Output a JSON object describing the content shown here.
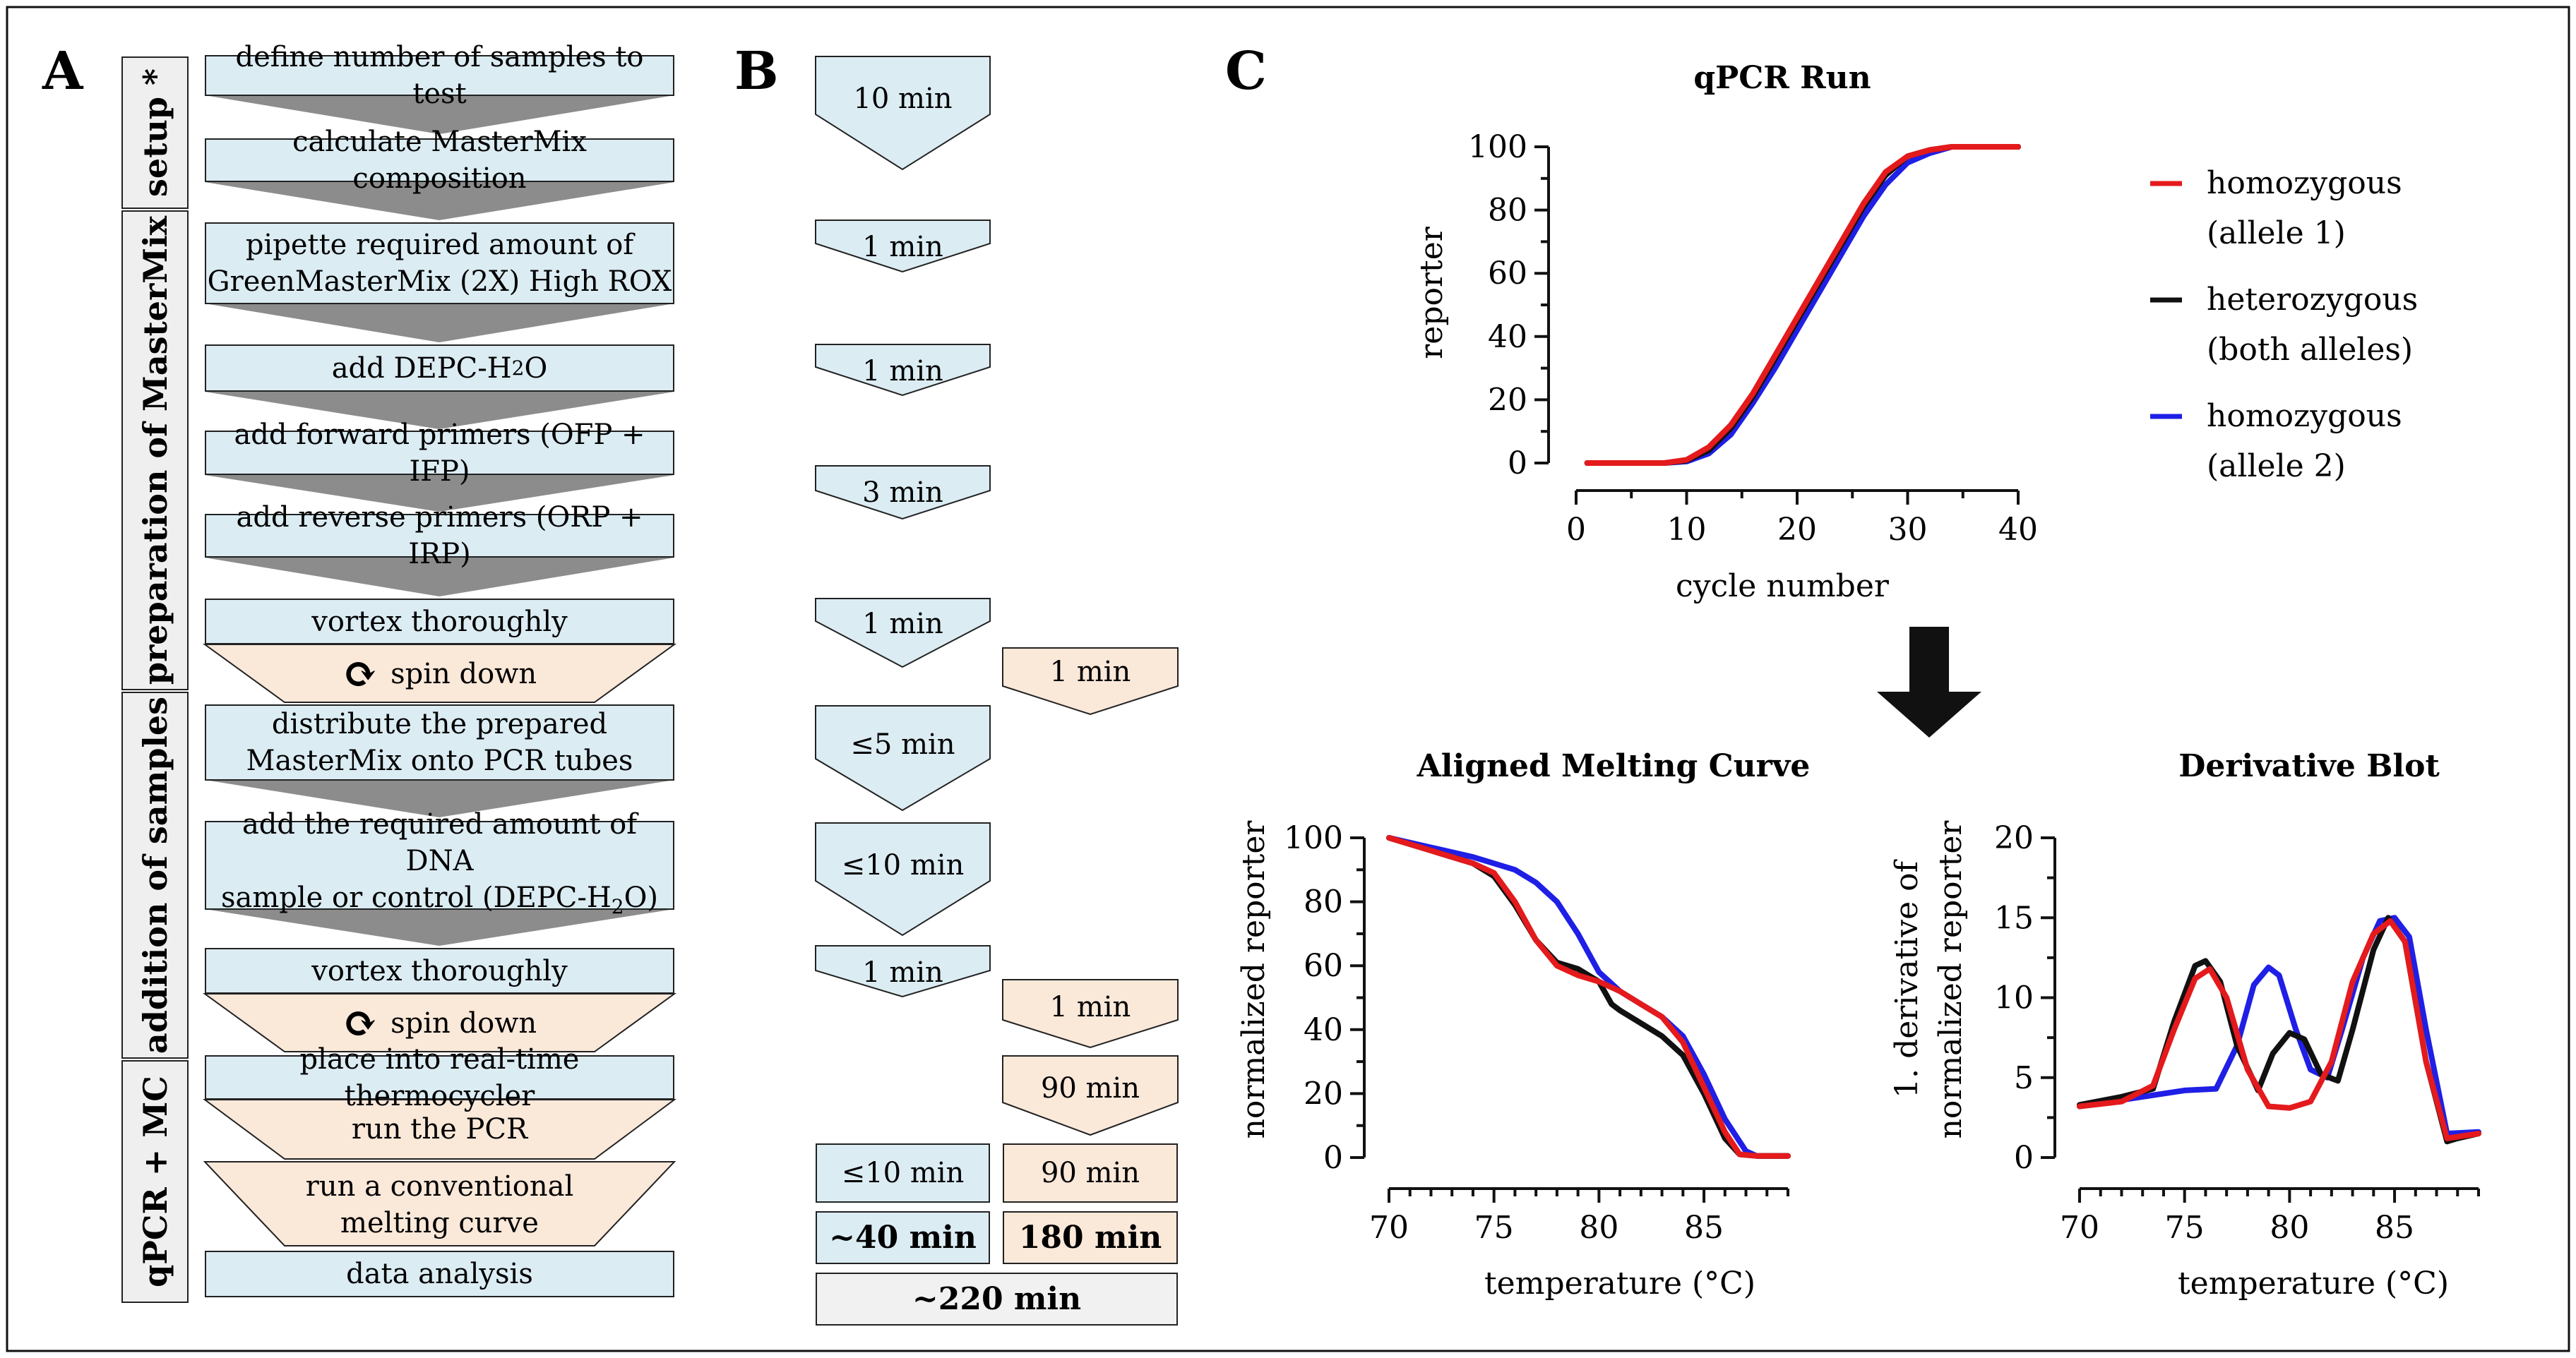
{
  "panel_labels": {
    "a": "A",
    "b": "B",
    "c": "C"
  },
  "panel_a": {
    "sections": [
      "setup *",
      "preparation of MasterMix",
      "addition of samples",
      "qPCR + MC"
    ],
    "steps": {
      "define_samples": "define number of samples to test",
      "calc_mastermix": "calculate MasterMix composition",
      "pipette_1": "pipette required amount of",
      "pipette_2": "GreenMasterMix (2X) High ROX",
      "add_water_prefix": "add DEPC-H",
      "add_water_sub": "2",
      "add_water_suffix": "O",
      "add_forward": "add forward primers (OFP + IFP)",
      "add_reverse": "add reverse primers (ORP + IRP)",
      "vortex_1": "vortex thoroughly",
      "spin_1": "spin down",
      "distribute_1": "distribute the prepared",
      "distribute_2": "MasterMix onto PCR tubes",
      "add_dna_1": "add the required amount of DNA",
      "add_dna_2": "sample or control (DEPC-H",
      "add_dna_sub": "2",
      "add_dna_3": "O)",
      "vortex_2": "vortex thoroughly",
      "spin_2": "spin down",
      "place": "place into real-time thermocycler",
      "run_pcr": "run the PCR",
      "melting_1": "run a  conventional",
      "melting_2": "melting curve",
      "analysis": "data analysis"
    }
  },
  "panel_b": {
    "times_left": [
      "10 min",
      "1 min",
      "1 min",
      "3 min",
      "1 min",
      "≤5 min",
      "≤10 min",
      "1 min"
    ],
    "times_right": [
      "1 min",
      "1 min",
      "90 min"
    ],
    "box_left_total": "≤10 min",
    "box_right_total": "90 min",
    "sum_left": "~40 min",
    "sum_right": "180 min",
    "grand_total": "~220 min"
  },
  "colors": {
    "blue_box": "#dbecf3",
    "peach_box": "#fae8d9",
    "grey_arrow": "#8c8c8c",
    "red": "#e41a1c",
    "black": "#111111",
    "blue": "#1f1fe6"
  },
  "legend": {
    "red_1": "homozygous",
    "red_2": "(allele 1)",
    "black_1": "heterozygous",
    "black_2": "(both alleles)",
    "blue_1": "homozygous",
    "blue_2": "(allele 2)"
  },
  "chart_data": [
    {
      "type": "line",
      "title": "qPCR Run",
      "xlabel": "cycle number",
      "ylabel": "reporter",
      "xlim": [
        0,
        40
      ],
      "ylim": [
        0,
        100
      ],
      "xticks": [
        0,
        10,
        20,
        30,
        40
      ],
      "yticks": [
        0,
        20,
        40,
        60,
        80,
        100
      ],
      "series": [
        {
          "name": "homozygous (allele 1)",
          "color": "#e41a1c",
          "x": [
            1,
            8,
            10,
            12,
            14,
            16,
            18,
            20,
            22,
            24,
            26,
            28,
            30,
            32,
            34,
            36,
            40
          ],
          "y": [
            0,
            0,
            1,
            5,
            12,
            22,
            34,
            46,
            58,
            70,
            82,
            92,
            97,
            99,
            100,
            100,
            100
          ]
        },
        {
          "name": "heterozygous (both alleles)",
          "color": "#111111",
          "x": [
            1,
            8,
            10,
            12,
            14,
            16,
            18,
            20,
            22,
            24,
            26,
            28,
            30,
            32,
            34,
            36,
            40
          ],
          "y": [
            0,
            0,
            0.8,
            4,
            11,
            21,
            33,
            45,
            57,
            69,
            81,
            91,
            97,
            99,
            100,
            100,
            100
          ]
        },
        {
          "name": "homozygous (allele 2)",
          "color": "#1f1fe6",
          "x": [
            1,
            8,
            10,
            12,
            14,
            16,
            18,
            20,
            22,
            24,
            26,
            28,
            30,
            32,
            34,
            36,
            40
          ],
          "y": [
            0,
            0,
            0.5,
            3,
            9,
            19,
            30,
            42,
            54,
            66,
            78,
            88,
            95,
            98,
            100,
            100,
            100
          ]
        }
      ]
    },
    {
      "type": "line",
      "title": "Aligned Melting Curve",
      "xlabel": "temperature (°C)",
      "ylabel": "normalized reporter",
      "xlim": [
        70,
        89
      ],
      "ylim": [
        0,
        100
      ],
      "xticks": [
        70,
        75,
        80,
        85
      ],
      "yticks": [
        0,
        20,
        40,
        60,
        80,
        100
      ],
      "series": [
        {
          "name": "homozygous (allele 1)",
          "color": "#e41a1c",
          "x": [
            70,
            72,
            74,
            75,
            76,
            77,
            78,
            79,
            80,
            81,
            82,
            83,
            84,
            85,
            86,
            86.7,
            87.5,
            89
          ],
          "y": [
            100,
            96,
            92,
            89,
            80,
            68,
            60,
            57,
            55,
            52,
            48,
            44,
            36,
            22,
            8,
            1,
            0.5,
            0.5
          ]
        },
        {
          "name": "heterozygous (both alleles)",
          "color": "#111111",
          "x": [
            70,
            72,
            74,
            75,
            76,
            77,
            78,
            79,
            80,
            80.6,
            81,
            82,
            83,
            84,
            85,
            86,
            86.7,
            87.5,
            89
          ],
          "y": [
            100,
            96,
            92,
            88,
            79,
            68,
            61,
            59,
            55,
            48,
            46,
            42,
            38,
            32,
            20,
            6,
            1,
            0.5,
            0.5
          ]
        },
        {
          "name": "homozygous (allele 2)",
          "color": "#1f1fe6",
          "x": [
            70,
            72,
            74,
            76,
            77,
            77.5,
            78,
            79,
            80,
            81,
            82,
            83,
            84,
            85,
            86,
            87,
            87.5,
            89
          ],
          "y": [
            100,
            97,
            94,
            90,
            86,
            83,
            80,
            70,
            58,
            52,
            48,
            44,
            38,
            26,
            12,
            2,
            0.5,
            0.5
          ]
        }
      ]
    },
    {
      "type": "line",
      "title": "Derivative Blot",
      "xlabel": "temperature (°C)",
      "ylabel": "1. derivative of normalized reporter",
      "xlim": [
        70,
        89
      ],
      "ylim": [
        0,
        20
      ],
      "xticks": [
        70,
        75,
        80,
        85
      ],
      "yticks": [
        0,
        5,
        10,
        15,
        20
      ],
      "series": [
        {
          "name": "homozygous (allele 1)",
          "color": "#e41a1c",
          "x": [
            70,
            72,
            73.5,
            74.5,
            75.5,
            76.2,
            77,
            78,
            79,
            80,
            81,
            82,
            83,
            84,
            84.8,
            85.5,
            86.5,
            87.5,
            89
          ],
          "y": [
            3.2,
            3.5,
            4.5,
            8,
            11.2,
            11.8,
            10,
            5.5,
            3.2,
            3.1,
            3.5,
            6,
            11,
            14,
            14.8,
            13.5,
            6,
            1.2,
            1.5
          ]
        },
        {
          "name": "heterozygous (both alleles)",
          "color": "#111111",
          "x": [
            70,
            72,
            73.5,
            74.5,
            75.5,
            76,
            76.7,
            77.5,
            78.5,
            79.2,
            80,
            80.7,
            81.5,
            82.3,
            83,
            84,
            84.7,
            85.5,
            86.5,
            87.5,
            88,
            89
          ],
          "y": [
            3.3,
            3.8,
            4.3,
            8.5,
            12,
            12.3,
            11,
            7,
            4.2,
            6.5,
            7.8,
            7.4,
            5.2,
            4.8,
            8,
            13,
            15,
            13.5,
            6,
            1,
            1.2,
            1.5
          ]
        },
        {
          "name": "homozygous (allele 2)",
          "color": "#1f1fe6",
          "x": [
            70,
            73,
            75,
            76.5,
            77.5,
            78.3,
            79,
            79.5,
            80.3,
            81,
            81.8,
            82.5,
            83.5,
            84.3,
            85,
            85.7,
            86.5,
            87.5,
            89
          ],
          "y": [
            3.2,
            3.8,
            4.2,
            4.3,
            7,
            10.8,
            11.9,
            11.4,
            8,
            5.5,
            5,
            8,
            12.5,
            14.8,
            15,
            13.8,
            8,
            1.5,
            1.6
          ]
        }
      ]
    }
  ]
}
